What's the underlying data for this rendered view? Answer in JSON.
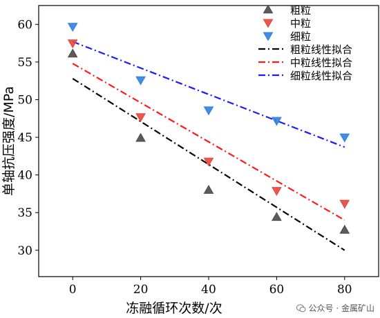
{
  "chart_data": {
    "type": "scatter",
    "xlabel": "冻融循环次数/次",
    "ylabel": "单轴抗压强度/MPa",
    "xlim": [
      -10,
      90
    ],
    "ylim": [
      26.5,
      62.5
    ],
    "xticks": [
      0,
      20,
      40,
      60,
      80
    ],
    "yticks": [
      30,
      35,
      40,
      45,
      50,
      55,
      60
    ],
    "grid": false,
    "legend_position": "top-right",
    "series": [
      {
        "name": "粗粒",
        "kind": "points",
        "marker": "triangle-up",
        "color": "#4a4a4a",
        "x": [
          0,
          20,
          40,
          60,
          80
        ],
        "y": [
          56.1,
          44.9,
          38.0,
          34.4,
          32.7
        ]
      },
      {
        "name": "中粒",
        "kind": "points",
        "marker": "triangle-down",
        "color": "#e8453c",
        "x": [
          0,
          20,
          40,
          60,
          80
        ],
        "y": [
          57.5,
          47.7,
          41.8,
          37.9,
          36.2
        ]
      },
      {
        "name": "细粒",
        "kind": "points",
        "marker": "triangle-down",
        "color": "#2f7fe0",
        "x": [
          0,
          20,
          40,
          60,
          80
        ],
        "y": [
          59.7,
          52.6,
          48.6,
          47.2,
          45.0
        ]
      },
      {
        "name": "粗粒线性拟合",
        "kind": "line",
        "dash": "dashdot",
        "color": "#000000",
        "x": [
          0,
          80
        ],
        "y": [
          52.8,
          30.0
        ]
      },
      {
        "name": "中粒线性拟合",
        "kind": "line",
        "dash": "dashdot",
        "color": "#ff1a1a",
        "x": [
          0,
          80
        ],
        "y": [
          54.8,
          34.0
        ]
      },
      {
        "name": "细粒线性拟合",
        "kind": "line",
        "dash": "dashdot",
        "color": "#1a1aff",
        "x": [
          0,
          80
        ],
        "y": [
          57.7,
          43.7
        ]
      }
    ]
  },
  "watermark": {
    "text": "公众号 · 金属矿山",
    "icon": "wechat-icon"
  }
}
